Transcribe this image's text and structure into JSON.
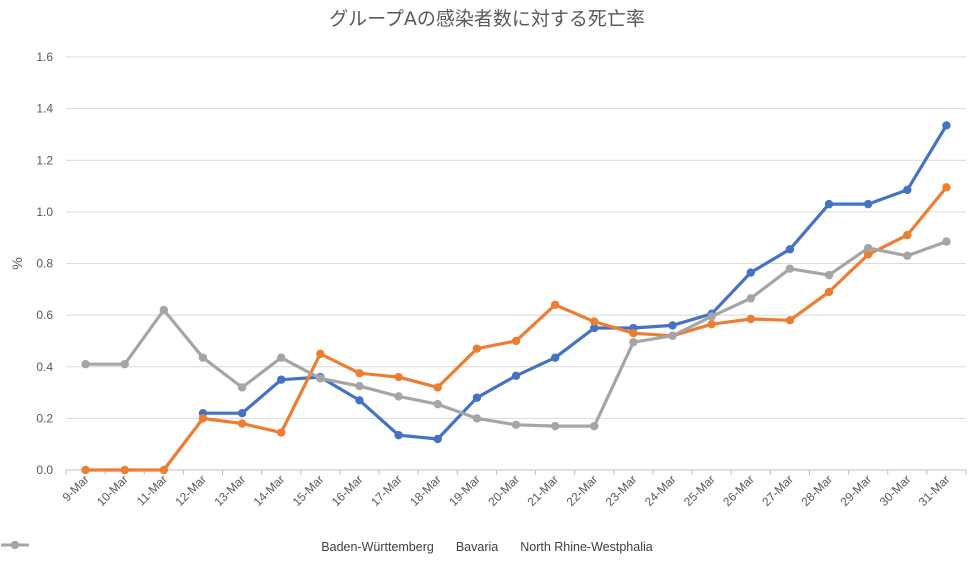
{
  "chart_data": {
    "type": "line",
    "title": "グループAの感染者数に対する死亡率",
    "xlabel": "",
    "ylabel": "%",
    "ylim": [
      0,
      1.6
    ],
    "yticks": [
      "0.0",
      "0.2",
      "0.4",
      "0.6",
      "0.8",
      "1.0",
      "1.2",
      "1.4",
      "1.6"
    ],
    "grid": true,
    "legend_position": "bottom",
    "categories": [
      "9-Mar",
      "10-Mar",
      "11-Mar",
      "12-Mar",
      "13-Mar",
      "14-Mar",
      "15-Mar",
      "16-Mar",
      "17-Mar",
      "18-Mar",
      "19-Mar",
      "20-Mar",
      "21-Mar",
      "22-Mar",
      "23-Mar",
      "24-Mar",
      "25-Mar",
      "26-Mar",
      "27-Mar",
      "28-Mar",
      "29-Mar",
      "30-Mar",
      "31-Mar"
    ],
    "series": [
      {
        "name": "Baden-Württemberg",
        "color": "#4472C4",
        "values": [
          null,
          null,
          null,
          0.22,
          0.22,
          0.35,
          0.36,
          0.27,
          0.135,
          0.12,
          0.28,
          0.365,
          0.435,
          0.55,
          0.55,
          0.56,
          0.605,
          0.765,
          0.855,
          1.03,
          1.03,
          1.085,
          1.335
        ]
      },
      {
        "name": "Bavaria",
        "color": "#ED7D31",
        "values": [
          0.0,
          0.0,
          0.0,
          0.2,
          0.18,
          0.145,
          0.45,
          0.375,
          0.36,
          0.32,
          0.47,
          0.5,
          0.64,
          0.575,
          0.53,
          0.52,
          0.565,
          0.585,
          0.58,
          0.69,
          0.835,
          0.91,
          1.095
        ]
      },
      {
        "name": "North Rhine-Westphalia",
        "color": "#A5A5A5",
        "values": [
          0.41,
          0.41,
          0.62,
          0.435,
          0.32,
          0.435,
          0.355,
          0.325,
          0.285,
          0.255,
          0.2,
          0.175,
          0.17,
          0.17,
          0.495,
          0.52,
          0.595,
          0.665,
          0.78,
          0.755,
          0.86,
          0.83,
          0.885
        ]
      }
    ]
  }
}
